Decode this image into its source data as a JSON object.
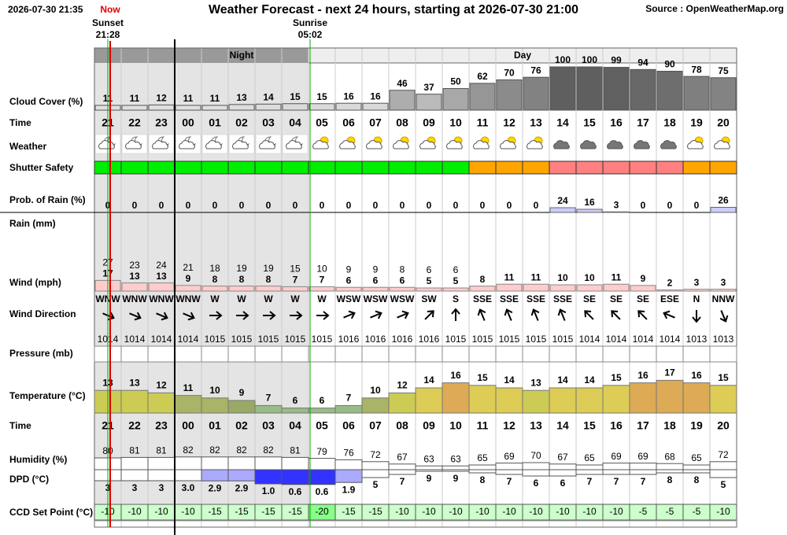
{
  "header": {
    "timestamp": "2026-07-30 21:35",
    "now": "Now",
    "title": "Weather Forecast - next 24 hours, starting at 2026-07-30 21:00",
    "source": "Source : OpenWeatherMap.org"
  },
  "sunset": {
    "label": "Sunset",
    "time": "21:28"
  },
  "sunrise": {
    "label": "Sunrise",
    "time": "05:02"
  },
  "periods": {
    "night": "Night",
    "day": "Day"
  },
  "row_labels": {
    "cloud_cover": "Cloud Cover (%)",
    "time": "Time",
    "weather": "Weather",
    "shutter_safety": "Shutter Safety",
    "rain_probability": "Prob. of Rain (%)",
    "rain": "Rain (mm)",
    "wind": "Wind (mph)",
    "wind_direction": "Wind Direction",
    "pressure": "Pressure (mb)",
    "temperature": "Temperature (°C)",
    "humidity": "Humidity (%)",
    "dpd": "DPD (°C)",
    "ccd_set_point": "CCD Set Point (°C)"
  },
  "hours": [
    "21",
    "22",
    "23",
    "00",
    "01",
    "02",
    "03",
    "04",
    "05",
    "06",
    "07",
    "08",
    "09",
    "10",
    "11",
    "12",
    "13",
    "14",
    "15",
    "16",
    "17",
    "18",
    "19",
    "20"
  ],
  "cloud_cover": [
    11,
    11,
    12,
    11,
    11,
    13,
    14,
    15,
    15,
    16,
    16,
    46,
    37,
    50,
    62,
    70,
    76,
    100,
    100,
    99,
    94,
    90,
    78,
    75
  ],
  "shutter_safety_colors": [
    "#00ee00",
    "#00ee00",
    "#00ee00",
    "#00ee00",
    "#00ee00",
    "#00ee00",
    "#00ee00",
    "#00ee00",
    "#00ee00",
    "#00ee00",
    "#00ee00",
    "#00ee00",
    "#00ee00",
    "#00ee00",
    "#ffa500",
    "#ffa500",
    "#ffa500",
    "#ff8080",
    "#ff8080",
    "#ff8080",
    "#ff8080",
    "#ff8080",
    "#ffa500",
    "#ffa500"
  ],
  "rain_probability": [
    0,
    0,
    0,
    0,
    0,
    0,
    0,
    0,
    0,
    0,
    0,
    0,
    0,
    0,
    0,
    0,
    0,
    24,
    16,
    3,
    0,
    0,
    0,
    26
  ],
  "wind_gust": [
    27,
    23,
    24,
    21,
    18,
    19,
    19,
    15,
    10,
    9,
    9,
    8,
    6,
    6,
    null,
    null,
    null,
    null,
    null,
    null,
    null,
    null,
    null,
    null
  ],
  "wind_speed": [
    17,
    13,
    13,
    9,
    8,
    8,
    8,
    7,
    7,
    6,
    6,
    6,
    5,
    5,
    8,
    11,
    11,
    10,
    10,
    11,
    9,
    2,
    3,
    3
  ],
  "wind_direction": [
    "WNW",
    "WNW",
    "WNW",
    "WNW",
    "W",
    "W",
    "W",
    "W",
    "W",
    "WSW",
    "WSW",
    "WSW",
    "SW",
    "S",
    "SSE",
    "SSE",
    "SSE",
    "SSE",
    "SE",
    "SE",
    "SE",
    "ESE",
    "N",
    "NNW"
  ],
  "wind_direction_degrees": [
    292.5,
    292.5,
    292.5,
    292.5,
    270,
    270,
    270,
    270,
    270,
    247.5,
    247.5,
    247.5,
    225,
    180,
    157.5,
    157.5,
    157.5,
    157.5,
    135,
    135,
    135,
    112.5,
    0,
    337.5
  ],
  "pressure": [
    1014,
    1014,
    1014,
    1014,
    1015,
    1015,
    1015,
    1015,
    1015,
    1016,
    1016,
    1016,
    1016,
    1015,
    1015,
    1015,
    1015,
    1015,
    1014,
    1014,
    1014,
    1014,
    1013,
    1013
  ],
  "temperature": [
    13,
    13,
    12,
    11,
    10,
    9,
    7,
    6,
    6,
    7,
    10,
    12,
    14,
    16,
    15,
    14,
    13,
    14,
    14,
    15,
    16,
    17,
    16,
    15
  ],
  "humidity": [
    80,
    81,
    81,
    82,
    82,
    82,
    82,
    81,
    79,
    76,
    72,
    67,
    63,
    63,
    65,
    69,
    70,
    67,
    65,
    69,
    69,
    68,
    65,
    72
  ],
  "dpd": {
    "values": [
      3,
      3,
      3,
      3.0,
      2.9,
      2.9,
      1.0,
      0.6,
      0.6,
      1.9,
      5,
      7,
      9,
      9,
      8,
      7,
      6,
      6,
      7,
      7,
      7,
      8,
      8,
      5
    ],
    "value_labels": [
      "3",
      "3",
      "3",
      "3.0",
      "2.9",
      "2.9",
      "1.0",
      "0.6",
      "0.6",
      "1.9",
      "5",
      "7",
      "9",
      "9",
      "8",
      "7",
      "6",
      "6",
      "7",
      "7",
      "7",
      "8",
      "8",
      "5"
    ]
  },
  "ccd_set_point": [
    -10,
    -10,
    -10,
    -10,
    -15,
    -15,
    -15,
    -15,
    -20,
    -15,
    -15,
    -10,
    -10,
    -10,
    -10,
    -10,
    -10,
    -10,
    -10,
    -10,
    -5,
    -5,
    -5,
    -10
  ]
}
